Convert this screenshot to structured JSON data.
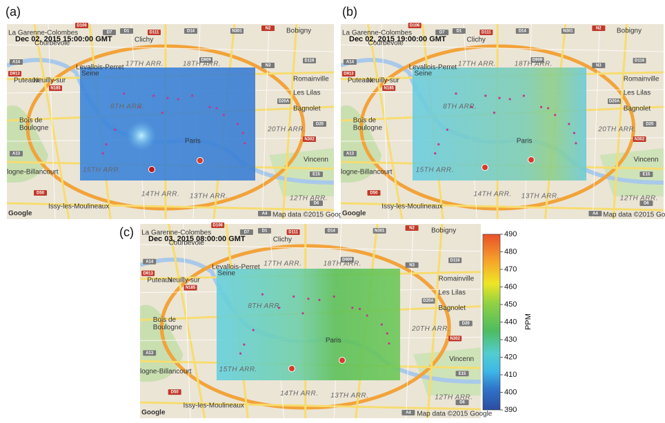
{
  "panels": [
    {
      "label": "(a)",
      "timestamp": "Dec 02, 2015 15:00:00 GMT"
    },
    {
      "label": "(b)",
      "timestamp": "Dec 02, 2015 19:00:00 GMT"
    },
    {
      "label": "(c)",
      "timestamp": "Dec 03, 2015 08:00:00 GMT"
    }
  ],
  "map_labels": [
    "La Garenne-Colombes",
    "Courbevoie",
    "Clichy",
    "Bobigny",
    "Levallois-Perret",
    "Puteaux",
    "Neuilly-sur",
    "Seine",
    "Romainville",
    "Les Lilas",
    "Bagnolet",
    "Bois de",
    "Boulogne",
    "17TH ARR.",
    "18TH ARR.",
    "8TH ARR.",
    "20TH ARR.",
    "Paris",
    "logne-Billancourt",
    "Vincenn",
    "15TH ARR.",
    "14TH ARR.",
    "13TH ARR.",
    "12TH ARR.",
    "Issy-les-Moulineaux",
    "Map data ©2015 Google",
    "Google"
  ],
  "road_labels": [
    "D106",
    "D7",
    "D1",
    "D111",
    "D14",
    "N301",
    "N2",
    "D909",
    "A14",
    "D913",
    "N3",
    "D116",
    "N185",
    "D20A",
    "D20",
    "N302",
    "A13",
    "E15",
    "D50",
    "A4",
    "D6"
  ],
  "colorbar": {
    "label": "PPM",
    "lim": [
      390,
      490
    ],
    "ticks": [
      390,
      400,
      410,
      420,
      430,
      440,
      450,
      460,
      470,
      480,
      490
    ]
  }
}
